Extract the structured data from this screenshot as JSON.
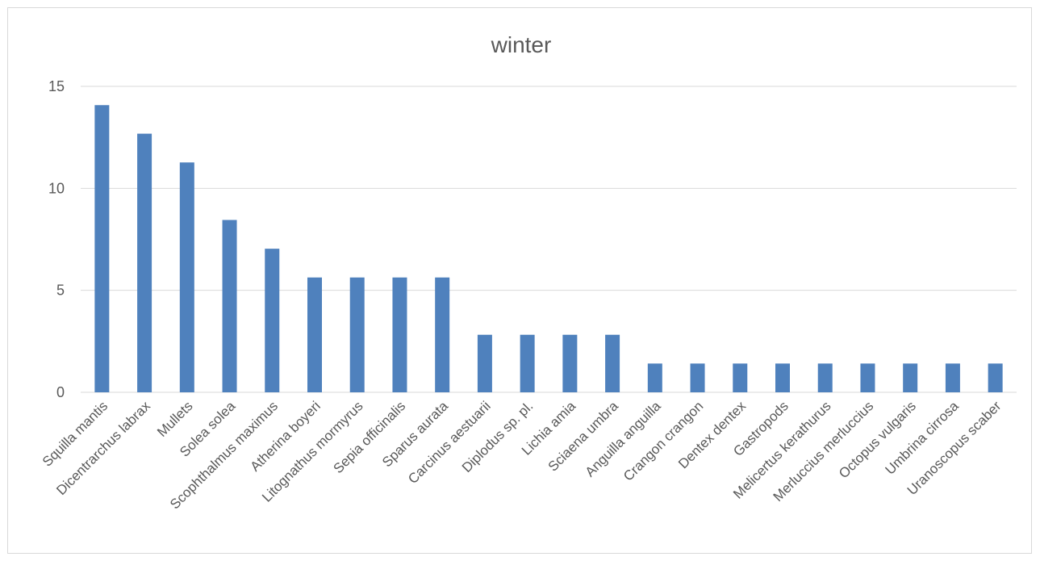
{
  "chart_data": {
    "type": "bar",
    "title": "winter",
    "xlabel": "",
    "ylabel": "",
    "ylim": [
      0,
      15
    ],
    "yticks": [
      0,
      5,
      10,
      15
    ],
    "grid": true,
    "legend": "none",
    "bar_color": "#4f81bd",
    "categories": [
      "Squilla mantis",
      "Dicentrarchus labrax",
      "Mullets",
      "Solea solea",
      "Scophthalmus maximus",
      "Atherina boyeri",
      "Litognathus mormyrus",
      "Sepia officinalis",
      "Sparus aurata",
      "Carcinus aestuarii",
      "Diplodus sp. pl.",
      "Lichia amia",
      "Sciaena umbra",
      "Anguilla anguilla",
      "Crangon crangon",
      "Dentex dentex",
      "Gastropods",
      "Melicertus kerathurus",
      "Merluccius merluccius",
      "Octopus vulgaris",
      "Umbrina cirrosa",
      "Uranoscopus scaber"
    ],
    "values": [
      14.08,
      12.68,
      11.27,
      8.45,
      7.04,
      5.63,
      5.63,
      5.63,
      5.63,
      2.82,
      2.82,
      2.82,
      2.82,
      1.41,
      1.41,
      1.41,
      1.41,
      1.41,
      1.41,
      1.41,
      1.41,
      1.41
    ]
  }
}
